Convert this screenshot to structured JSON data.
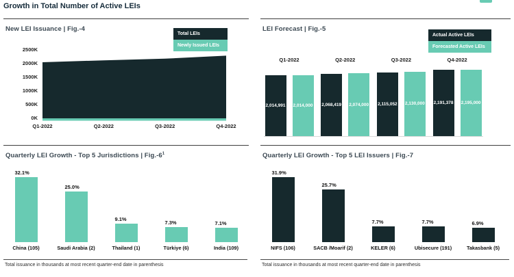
{
  "page": {
    "title": "Growth in Total Number of Active LEIs",
    "footnote": "Total issuance in thousands at most recent quarter-end date in parenthesis"
  },
  "colors": {
    "dark": "#16292d",
    "teal": "#68cbb3"
  },
  "chart_data": [
    {
      "id": "new-lei-issuance",
      "type": "area",
      "title": "New LEI Issuance | Fig.-4",
      "x": [
        "Q1-2022",
        "Q2-2022",
        "Q3-2022",
        "Q4-2022"
      ],
      "ylim": [
        0,
        2500000
      ],
      "yticks": [
        "2500K",
        "2000K",
        "1500K",
        "1000K",
        "500K",
        "0K"
      ],
      "legend_position": "top-right",
      "series": [
        {
          "name": "Total LEIs",
          "color": "#16292d",
          "values": [
            2050000,
            2120000,
            2180000,
            2290000
          ]
        },
        {
          "name": "Newly Issued LEIs",
          "color": "#68cbb3",
          "values": [
            45000,
            50000,
            55000,
            70000
          ]
        }
      ]
    },
    {
      "id": "lei-forecast",
      "type": "bar",
      "title": "LEI Forecast | Fig.-5",
      "categories": [
        "Q1-2022",
        "Q2-2022",
        "Q3-2022",
        "Q4-2022"
      ],
      "legend_position": "top-right",
      "series": [
        {
          "name": "Actual Active LEIs",
          "color": "#16292d",
          "values": [
            2014991,
            2068419,
            2115052,
            2191378
          ],
          "labels": [
            "2,014,991",
            "2,068,419",
            "2,115,052",
            "2,191,378"
          ]
        },
        {
          "name": "Forecasted Active LEIs",
          "color": "#68cbb3",
          "values": [
            2014000,
            2074000,
            2130000,
            2195000
          ],
          "labels": [
            "2,014,000",
            "2,074,000",
            "2,130,000",
            "2,195,000"
          ]
        }
      ]
    },
    {
      "id": "top5-jurisdictions",
      "type": "bar",
      "title": "Quarterly LEI Growth - Top 5 Jurisdictions | Fig.-6",
      "title_superscript": "1",
      "categories": [
        "China (105)",
        "Saudi Arabia (2)",
        "Thailand (1)",
        "Türkiye (6)",
        "India (109)"
      ],
      "values": [
        32.1,
        25.0,
        9.1,
        7.3,
        7.1
      ],
      "labels": [
        "32.1%",
        "25.0%",
        "9.1%",
        "7.3%",
        "7.1%"
      ],
      "bar_color": "#68cbb3"
    },
    {
      "id": "top5-issuers",
      "type": "bar",
      "title": "Quarterly LEI Growth - Top 5 LEI Issuers | Fig.-7",
      "categories": [
        "NIFS (106)",
        "SACB /Moarif (2)",
        "KELER (6)",
        "Ubisecure (191)",
        "Takasbank (5)"
      ],
      "values": [
        31.9,
        25.7,
        7.7,
        7.7,
        6.9
      ],
      "labels": [
        "31.9%",
        "25.7%",
        "7.7%",
        "7.7%",
        "6.9%"
      ],
      "bar_color": "#16292d"
    }
  ]
}
